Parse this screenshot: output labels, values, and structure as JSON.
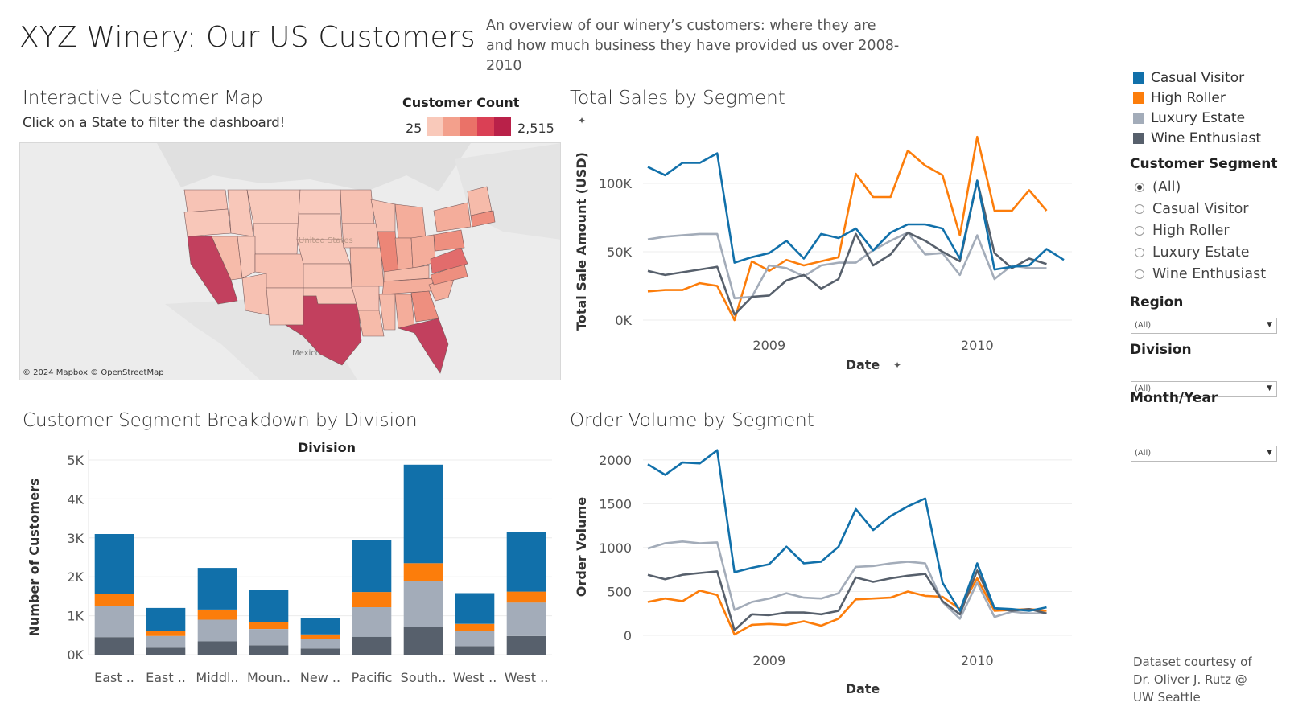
{
  "header": {
    "title": "XYZ Winery: Our US Customers",
    "subtitle": "An overview of our winery’s customers: where they are and how much business they have provided us over 2008-2010"
  },
  "map_panel": {
    "title": "Interactive Customer Map",
    "hint": "Click on a State to filter the dashboard!",
    "legend_title": "Customer Count",
    "legend_min": "25",
    "legend_max": "2,515",
    "legend_colors": [
      "#f9c9ba",
      "#f3a08c",
      "#ea7268",
      "#da4055",
      "#b92149"
    ],
    "credit": "© 2024 Mapbox © OpenStreetMap",
    "label_mexico": "Mexico",
    "label_us": "United States"
  },
  "colors": {
    "casual": "#1170aa",
    "high": "#fc7d0b",
    "luxury": "#a3acb9",
    "enthusiast": "#57606c"
  },
  "legend": {
    "items": [
      {
        "label": "Casual Visitor",
        "color": "#1170aa"
      },
      {
        "label": "High Roller",
        "color": "#fc7d0b"
      },
      {
        "label": "Luxury Estate",
        "color": "#a3acb9"
      },
      {
        "label": "Wine Enthusiast",
        "color": "#57606c"
      }
    ]
  },
  "filters": {
    "segment_title": "Customer Segment",
    "segment_options": [
      "(All)",
      "Casual Visitor",
      "High Roller",
      "Luxury Estate",
      "Wine Enthusiast"
    ],
    "region_title": "Region",
    "region_value": "(All)",
    "division_title": "Division",
    "division_value": "(All)",
    "month_title": "Month/Year",
    "month_value": "(All)"
  },
  "footer": {
    "credit_line1": "Dataset courtesy of",
    "credit_line2": "Dr. Oliver J. Rutz @",
    "credit_line3": "UW Seattle"
  },
  "chart_data": [
    {
      "id": "sales",
      "type": "line",
      "title": "Total Sales by Segment",
      "xlabel": "Date",
      "ylabel": "Total Sale Amount (USD)",
      "xticks": [
        "2009",
        "2010"
      ],
      "yticks": [
        "0K",
        "50K",
        "100K"
      ],
      "ylim": [
        0,
        140000
      ],
      "x": [
        "2008-06",
        "2008-07",
        "2008-08",
        "2008-09",
        "2008-10",
        "2008-11",
        "2008-12",
        "2009-01",
        "2009-02",
        "2009-03",
        "2009-04",
        "2009-05",
        "2009-06",
        "2009-07",
        "2009-08",
        "2009-09",
        "2009-10",
        "2009-11",
        "2009-12",
        "2010-01",
        "2010-02",
        "2010-03",
        "2010-04",
        "2010-05",
        "2010-06"
      ],
      "series": [
        {
          "name": "Casual Visitor",
          "values": [
            112000,
            106000,
            115000,
            115000,
            122000,
            42000,
            46000,
            49000,
            58000,
            45000,
            63000,
            60000,
            67000,
            51000,
            64000,
            70000,
            70000,
            67000,
            45000,
            102000,
            37000,
            39000,
            40000,
            52000,
            44000
          ]
        },
        {
          "name": "High Roller",
          "values": [
            21000,
            22000,
            22000,
            27000,
            25000,
            0,
            43000,
            36000,
            44000,
            40000,
            43000,
            46000,
            107000,
            90000,
            90000,
            124000,
            113000,
            106000,
            62000,
            134000,
            80000,
            80000,
            95000,
            80000,
            null
          ]
        },
        {
          "name": "Luxury Estate",
          "values": [
            59000,
            61000,
            62000,
            63000,
            63000,
            16000,
            17000,
            40000,
            38000,
            32000,
            40000,
            42000,
            42000,
            51000,
            58000,
            64000,
            48000,
            49000,
            33000,
            62000,
            30000,
            40000,
            38000,
            38000,
            null
          ]
        },
        {
          "name": "Wine Enthusiast",
          "values": [
            36000,
            33000,
            35000,
            37000,
            39000,
            4000,
            17000,
            18000,
            29000,
            33000,
            23000,
            30000,
            63000,
            40000,
            48000,
            64000,
            58000,
            50000,
            43000,
            102000,
            49000,
            38000,
            45000,
            41000,
            null
          ]
        }
      ]
    },
    {
      "id": "volume",
      "type": "line",
      "title": "Order Volume by Segment",
      "xlabel": "Date",
      "ylabel": "Order Volume",
      "xticks": [
        "2009",
        "2010"
      ],
      "yticks": [
        "0",
        "500",
        "1000",
        "1500",
        "2000"
      ],
      "ylim": [
        0,
        2200
      ],
      "x": [
        "2008-06",
        "2008-07",
        "2008-08",
        "2008-09",
        "2008-10",
        "2008-11",
        "2008-12",
        "2009-01",
        "2009-02",
        "2009-03",
        "2009-04",
        "2009-05",
        "2009-06",
        "2009-07",
        "2009-08",
        "2009-09",
        "2009-10",
        "2009-11",
        "2009-12",
        "2010-01",
        "2010-02",
        "2010-03",
        "2010-04",
        "2010-05",
        "2010-06"
      ],
      "series": [
        {
          "name": "Casual Visitor",
          "values": [
            1950,
            1830,
            1970,
            1960,
            2110,
            720,
            770,
            810,
            1010,
            820,
            840,
            1010,
            1440,
            1200,
            1360,
            1470,
            1560,
            600,
            280,
            820,
            310,
            300,
            280,
            320,
            null
          ]
        },
        {
          "name": "High Roller",
          "values": [
            380,
            420,
            390,
            510,
            460,
            10,
            120,
            130,
            120,
            160,
            110,
            190,
            410,
            420,
            430,
            500,
            450,
            440,
            300,
            650,
            280,
            290,
            300,
            280,
            null
          ]
        },
        {
          "name": "Luxury Estate",
          "values": [
            990,
            1050,
            1070,
            1050,
            1060,
            290,
            380,
            420,
            480,
            430,
            420,
            480,
            780,
            790,
            820,
            840,
            820,
            380,
            190,
            600,
            210,
            270,
            250,
            250,
            null
          ]
        },
        {
          "name": "Wine Enthusiast",
          "values": [
            690,
            640,
            690,
            710,
            730,
            60,
            240,
            230,
            260,
            260,
            240,
            280,
            660,
            610,
            650,
            680,
            700,
            390,
            240,
            740,
            310,
            280,
            300,
            250,
            null
          ]
        }
      ]
    },
    {
      "id": "division",
      "type": "bar",
      "stacked": true,
      "title": "Customer Segment Breakdown by Division",
      "header": "Division",
      "ylabel": "Number of Customers",
      "yticks": [
        "0K",
        "1K",
        "2K",
        "3K",
        "4K",
        "5K"
      ],
      "ylim": [
        0,
        5000
      ],
      "categories": [
        "East ..",
        "East ..",
        "Middl..",
        "Moun..",
        "New ..",
        "Pacific",
        "South..",
        "West ..",
        "West .."
      ],
      "series": [
        {
          "name": "Wine Enthusiast",
          "values": [
            450,
            180,
            340,
            240,
            160,
            460,
            710,
            220,
            480
          ]
        },
        {
          "name": "Luxury Estate",
          "values": [
            790,
            300,
            560,
            420,
            250,
            760,
            1170,
            390,
            860
          ]
        },
        {
          "name": "High Roller",
          "values": [
            330,
            140,
            260,
            180,
            110,
            390,
            470,
            180,
            280
          ]
        },
        {
          "name": "Casual Visitor",
          "values": [
            1530,
            580,
            1070,
            830,
            410,
            1330,
            2530,
            790,
            1520
          ]
        }
      ]
    }
  ]
}
